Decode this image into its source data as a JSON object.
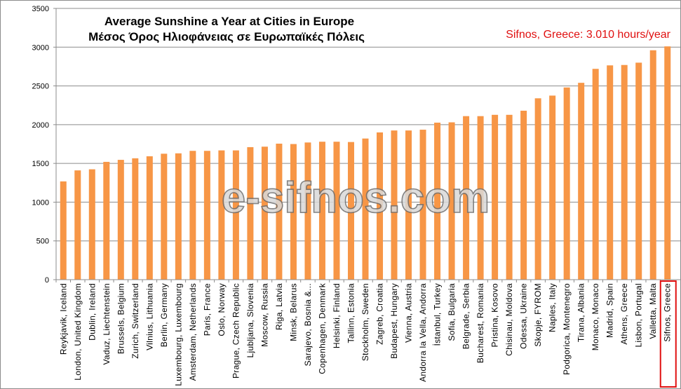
{
  "chart_data": {
    "type": "bar",
    "title": "Average Sunshine a Year at Cities in Europe",
    "subtitle": "Μέσος Όρος Ηλιοφάνειας σε Ευρωπαϊκές Πόλεις",
    "annotation": "Sifnos, Greece: 3.010 hours/year",
    "watermark": "e-sifnos.com",
    "xlabel": "",
    "ylabel": "",
    "ylim": [
      0,
      3500
    ],
    "yticks": [
      0,
      500,
      1000,
      1500,
      2000,
      2500,
      3000,
      3500
    ],
    "grid": true,
    "bar_color": "#f79646",
    "highlight_color": "#e01010",
    "highlight_category": "Sifnos, Greece",
    "categories": [
      "Reykjavik, Iceland",
      "London, United Kingdom",
      "Dublin, Ireland",
      "Vaduz, Liechtenstein",
      "Brussels, Belgium",
      "Zurich, Switzerland",
      "Vilnius, Lithuania",
      "Berlin, Germany",
      "Luxembourg, Luxembourg",
      "Amsterdam, Netherlands",
      "Paris, France",
      "Oslo, Norway",
      "Prague, Czech Republic",
      "Ljubljana, Slovenia",
      "Moscow, Russia",
      "Riga, Latvia",
      "Minsk, Belarus",
      "Sarajevo, Bosnia &...",
      "Copenhagen, Denmark",
      "Helsinki, Finland",
      "Tallinn, Estonia",
      "Stockholm, Sweden",
      "Zagreb, Croatia",
      "Budapest, Hungary",
      "Vienna, Austria",
      "Andorra la Vella, Andorra",
      "İstanbul, Turkey",
      "Sofia, Bulgaria",
      "Belgrade, Serbia",
      "Bucharest, Romania",
      "Pristina, Kosovo",
      "Chisinau, Moldova",
      "Odessa, Ukraine",
      "Skopje, FYROM",
      "Naples, Italy",
      "Podgorica, Montenegro",
      "Tirana, Albania",
      "Monaco, Monaco",
      "Madrid, Spain",
      "Athens, Greece",
      "Lisbon, Portugal",
      "Valletta, Malta",
      "Sifnos, Greece"
    ],
    "values": [
      1268,
      1410,
      1424,
      1520,
      1546,
      1566,
      1592,
      1625,
      1630,
      1662,
      1662,
      1668,
      1668,
      1710,
      1716,
      1755,
      1750,
      1770,
      1780,
      1780,
      1776,
      1821,
      1900,
      1925,
      1925,
      1935,
      2026,
      2030,
      2110,
      2110,
      2127,
      2127,
      2180,
      2340,
      2375,
      2480,
      2540,
      2720,
      2765,
      2770,
      2800,
      2960,
      3010
    ]
  }
}
